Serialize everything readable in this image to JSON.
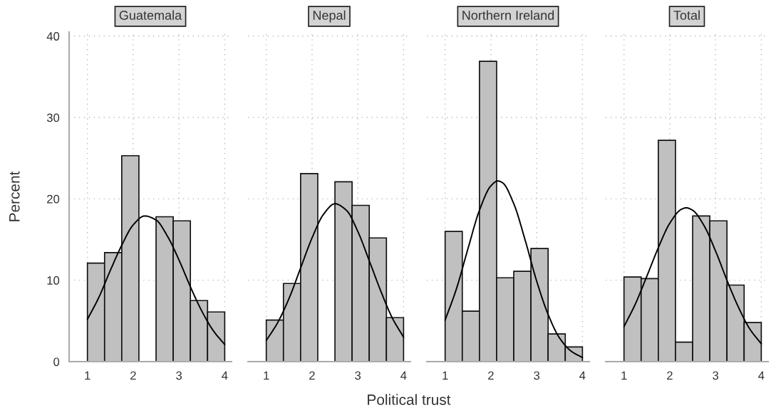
{
  "chart_data": [
    {
      "type": "histogram",
      "title": "Guatemala",
      "ylabel": "Percent",
      "annotations": [
        "Political trust"
      ],
      "bins": [
        1,
        1.375,
        1.75,
        2.125,
        2.5,
        2.875,
        3.25,
        3.625,
        4
      ],
      "values": [
        12.1,
        13.4,
        25.3,
        0,
        17.8,
        17.3,
        7.5,
        6.1
      ],
      "color": "#c0c0c0",
      "xlim": [
        0.6,
        4.15
      ],
      "ylim": [
        0,
        40.5
      ],
      "xticks": [
        1,
        2,
        3,
        4
      ],
      "yticks": [
        0,
        10,
        20,
        30,
        40
      ],
      "grid": true,
      "series": [
        {
          "type": "line",
          "color": "#000000",
          "x": [
            1,
            1.25,
            1.5,
            1.75,
            2,
            2.25,
            2.5,
            2.75,
            3,
            3.25,
            3.5,
            3.75,
            4
          ],
          "values": [
            5.2,
            7.9,
            11.2,
            14.3,
            16.8,
            17.9,
            17.4,
            15.4,
            12.5,
            9.2,
            6.2,
            3.8,
            2.1
          ]
        }
      ]
    },
    {
      "type": "histogram",
      "title": "Nepal",
      "bins": [
        1,
        1.375,
        1.75,
        2.125,
        2.5,
        2.875,
        3.25,
        3.625,
        4
      ],
      "values": [
        5.1,
        9.6,
        23.1,
        0,
        22.1,
        19.2,
        15.2,
        5.4
      ],
      "color": "#c0c0c0",
      "xlim": [
        0.6,
        4.15
      ],
      "ylim": [
        0,
        40.5
      ],
      "xticks": [
        1,
        2,
        3,
        4
      ],
      "yticks": [
        0,
        10,
        20,
        30,
        40
      ],
      "grid": true,
      "tick_labels": "x",
      "series": [
        {
          "type": "line",
          "color": "#000000",
          "x": [
            1,
            1.25,
            1.5,
            1.75,
            2,
            2.25,
            2.5,
            2.75,
            3,
            3.25,
            3.5,
            3.75,
            4
          ],
          "values": [
            2.6,
            4.8,
            7.8,
            11.5,
            15.2,
            18.1,
            19.4,
            18.6,
            16.0,
            12.4,
            8.7,
            5.4,
            3.0
          ]
        }
      ]
    },
    {
      "type": "histogram",
      "title": "Northern Ireland",
      "bins": [
        1,
        1.375,
        1.75,
        2.125,
        2.5,
        2.875,
        3.25,
        3.625,
        4
      ],
      "values": [
        16.0,
        6.2,
        36.9,
        10.3,
        11.1,
        13.9,
        3.4,
        1.8
      ],
      "color": "#c0c0c0",
      "xlim": [
        0.6,
        4.15
      ],
      "ylim": [
        0,
        40.5
      ],
      "xticks": [
        1,
        2,
        3,
        4
      ],
      "yticks": [
        0,
        10,
        20,
        30,
        40
      ],
      "grid": true,
      "tick_labels": "x",
      "series": [
        {
          "type": "line",
          "color": "#000000",
          "x": [
            1,
            1.25,
            1.5,
            1.75,
            2,
            2.15,
            2.25,
            2.5,
            2.75,
            3,
            3.25,
            3.5,
            3.75,
            4
          ],
          "values": [
            5.1,
            9.0,
            13.9,
            18.6,
            21.6,
            22.2,
            22.0,
            19.4,
            14.9,
            9.9,
            5.8,
            2.9,
            1.3,
            0.5
          ]
        }
      ]
    },
    {
      "type": "histogram",
      "title": "Total",
      "bins": [
        1,
        1.375,
        1.75,
        2.125,
        2.5,
        2.875,
        3.25,
        3.625,
        4
      ],
      "values": [
        10.4,
        10.2,
        27.2,
        2.4,
        17.9,
        17.3,
        9.4,
        4.8
      ],
      "color": "#c0c0c0",
      "xlim": [
        0.6,
        4.15
      ],
      "ylim": [
        0,
        40.5
      ],
      "xticks": [
        1,
        2,
        3,
        4
      ],
      "yticks": [
        0,
        10,
        20,
        30,
        40
      ],
      "grid": true,
      "tick_labels": "x",
      "series": [
        {
          "type": "line",
          "color": "#000000",
          "x": [
            1,
            1.25,
            1.5,
            1.75,
            2,
            2.25,
            2.36,
            2.5,
            2.75,
            3,
            3.25,
            3.5,
            3.75,
            4
          ],
          "values": [
            4.3,
            7.1,
            10.5,
            14.0,
            17.0,
            18.7,
            18.9,
            18.6,
            16.7,
            13.6,
            10.0,
            6.7,
            4.0,
            2.2
          ]
        }
      ]
    }
  ]
}
